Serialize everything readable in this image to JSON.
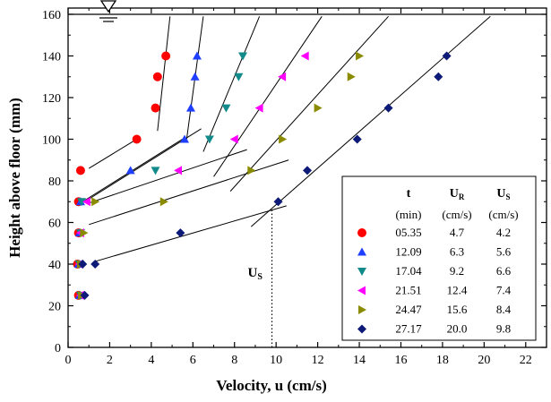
{
  "chart_data": {
    "type": "scatter",
    "xlabel": "Velocity, u (cm/s)",
    "ylabel": "Height above floor (mm)",
    "xlim": [
      0,
      23
    ],
    "ylim": [
      0,
      163
    ],
    "xticks": [
      "0",
      "2",
      "4",
      "6",
      "8",
      "10",
      "12",
      "14",
      "16",
      "18",
      "20",
      "22"
    ],
    "yticks": [
      "0",
      "20",
      "40",
      "60",
      "80",
      "100",
      "120",
      "140",
      "160"
    ],
    "water_surface_y": 160,
    "us_annotation": {
      "label": "U",
      "sub": "S",
      "x": 9.8
    },
    "legend": {
      "headers": {
        "t": "t",
        "ur_main": "U",
        "ur_sub": "R",
        "us_main": "U",
        "us_sub": "S"
      },
      "units": {
        "t": "(min)",
        "ur": "(cm/s)",
        "us": "(cm/s)"
      }
    },
    "series": [
      {
        "name": "05.35",
        "ur": "4.7",
        "us": "4.2",
        "marker": "circle",
        "color": "#ff0000",
        "points": [
          [
            0.5,
            25
          ],
          [
            0.45,
            40
          ],
          [
            0.5,
            55
          ],
          [
            0.5,
            70
          ],
          [
            0.6,
            85
          ],
          [
            3.3,
            100
          ],
          [
            4.2,
            115
          ],
          [
            4.3,
            130
          ],
          [
            4.7,
            140
          ]
        ],
        "lines": [
          [
            [
              1.0,
              86
            ],
            [
              3.3,
              100
            ]
          ],
          [
            [
              4.3,
              104
            ],
            [
              4.9,
              159
            ]
          ]
        ]
      },
      {
        "name": "12.09",
        "ur": "6.3",
        "us": "5.6",
        "marker": "triangle-up",
        "color": "#1f3fff",
        "points": [
          [
            0.55,
            25
          ],
          [
            0.5,
            40
          ],
          [
            0.55,
            55
          ],
          [
            0.6,
            70
          ],
          [
            3.0,
            85
          ],
          [
            5.6,
            100
          ],
          [
            5.9,
            115
          ],
          [
            6.1,
            130
          ],
          [
            6.2,
            140
          ]
        ],
        "lines": [
          [
            [
              0.7,
              70
            ],
            [
              5.5,
              100
            ]
          ],
          [
            [
              5.7,
              100
            ],
            [
              6.5,
              159
            ]
          ]
        ]
      },
      {
        "name": "17.04",
        "ur": "9.2",
        "us": "6.6",
        "marker": "triangle-down",
        "color": "#138a8a",
        "points": [
          [
            0.6,
            25
          ],
          [
            0.55,
            40
          ],
          [
            0.6,
            55
          ],
          [
            0.65,
            70
          ],
          [
            4.2,
            85
          ],
          [
            6.8,
            100
          ],
          [
            7.6,
            115
          ],
          [
            8.2,
            130
          ],
          [
            8.4,
            140
          ]
        ],
        "lines": [
          [
            [
              0.8,
              70
            ],
            [
              6.4,
              105
            ]
          ],
          [
            [
              6.5,
              94
            ],
            [
              9.2,
              159
            ]
          ]
        ]
      },
      {
        "name": "21.51",
        "ur": "12.4",
        "us": "7.4",
        "marker": "triangle-left",
        "color": "#ff00ff",
        "points": [
          [
            0.6,
            25
          ],
          [
            0.55,
            40
          ],
          [
            0.6,
            55
          ],
          [
            0.9,
            70
          ],
          [
            5.3,
            85
          ],
          [
            8.0,
            100
          ],
          [
            9.2,
            115
          ],
          [
            10.3,
            130
          ],
          [
            11.4,
            140
          ]
        ],
        "lines": [
          [
            [
              0.9,
              69
            ],
            [
              8.6,
              95
            ]
          ],
          [
            [
              7.0,
              82
            ],
            [
              12.2,
              159
            ]
          ]
        ]
      },
      {
        "name": "24.47",
        "ur": "15.6",
        "us": "8.4",
        "marker": "triangle-right",
        "color": "#8b8b00",
        "points": [
          [
            0.65,
            25
          ],
          [
            0.6,
            40
          ],
          [
            0.75,
            55
          ],
          [
            1.3,
            70
          ],
          [
            4.6,
            70
          ],
          [
            8.8,
            85
          ],
          [
            10.3,
            100
          ],
          [
            12.0,
            115
          ],
          [
            13.6,
            130
          ],
          [
            14.0,
            140
          ]
        ],
        "lines": [
          [
            [
              1.0,
              59
            ],
            [
              10.6,
              90
            ]
          ],
          [
            [
              7.8,
              75
            ],
            [
              15.4,
              159
            ]
          ]
        ]
      },
      {
        "name": "27.17",
        "ur": "20.0",
        "us": "9.8",
        "marker": "diamond",
        "color": "#0d1a78",
        "points": [
          [
            0.8,
            25
          ],
          [
            0.7,
            40
          ],
          [
            1.3,
            40
          ],
          [
            5.4,
            55
          ],
          [
            10.1,
            70
          ],
          [
            11.5,
            85
          ],
          [
            13.9,
            100
          ],
          [
            15.4,
            115
          ],
          [
            17.8,
            130
          ],
          [
            18.2,
            140
          ]
        ],
        "lines": [
          [
            [
              1.2,
              41
            ],
            [
              10.5,
              68
            ]
          ],
          [
            [
              8.8,
              58
            ],
            [
              20.3,
              159
            ]
          ]
        ]
      }
    ]
  }
}
